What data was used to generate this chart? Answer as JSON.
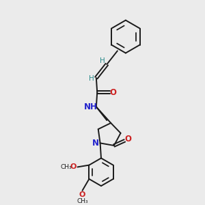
{
  "bg_color": "#ebebeb",
  "bond_color": "#1a1a1a",
  "N_color": "#2222cc",
  "O_color": "#cc2222",
  "H_color": "#2a8a8a",
  "lw": 1.4,
  "figsize": [
    3.0,
    3.0
  ],
  "dpi": 100,
  "xlim": [
    0,
    10
  ],
  "ylim": [
    0,
    10
  ]
}
